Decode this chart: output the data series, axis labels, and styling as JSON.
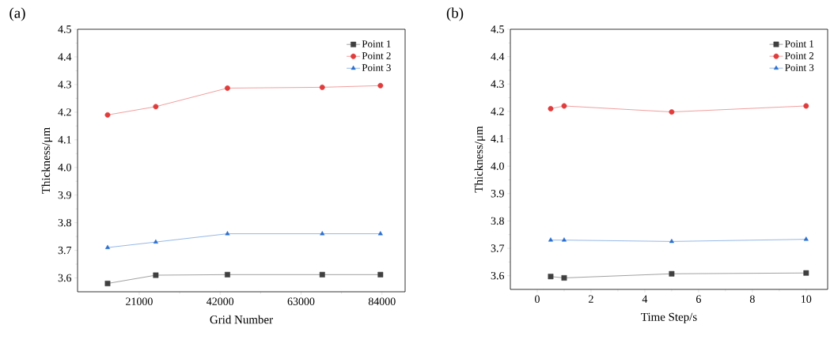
{
  "chart_data": [
    {
      "type": "line",
      "xlabel": "Grid Number",
      "ylabel": "Thickness/μm",
      "annotations": [
        "(a)"
      ],
      "legend": "top right",
      "line_style": "solid",
      "xlim": [
        5000,
        90000
      ],
      "xticks": [
        21000,
        42000,
        63000,
        84000
      ],
      "ylim": [
        3.55,
        4.5
      ],
      "yticks": [
        3.6,
        3.7,
        3.8,
        3.9,
        {
          "value": 4,
          "label": "4.0"
        },
        4.1,
        4.2,
        4.3,
        4.4,
        4.5
      ],
      "x": [
        12800,
        25300,
        43900,
        68500,
        83600
      ],
      "series": [
        {
          "name": "Point 1",
          "color": "#404040",
          "marker": "square",
          "values": [
            3.58,
            3.61,
            3.612,
            3.612,
            3.612
          ]
        },
        {
          "name": "Point 2",
          "color": "#e03c3c",
          "marker": "circle",
          "values": [
            4.19,
            4.22,
            4.287,
            4.29,
            4.296
          ]
        },
        {
          "name": "Point 3",
          "color": "#2a6fcf",
          "marker": "triangle",
          "values": [
            3.71,
            3.73,
            3.76,
            3.76,
            3.76
          ]
        }
      ]
    },
    {
      "type": "line",
      "xlabel": "Time Step/s",
      "ylabel": "Thickness/μm",
      "annotations": [
        "(b)"
      ],
      "legend": "top right",
      "line_style": "solid",
      "xlim": [
        -1,
        10.8
      ],
      "xticks": [
        0,
        2,
        4,
        6,
        8,
        10
      ],
      "ylim": [
        3.55,
        4.5
      ],
      "yticks": [
        3.6,
        3.7,
        3.8,
        3.9,
        {
          "value": 4,
          "label": "4.0"
        },
        4.1,
        4.2,
        4.3,
        4.4,
        4.5
      ],
      "x": [
        0.5,
        1,
        5,
        10
      ],
      "series": [
        {
          "name": "Point 1",
          "color": "#404040",
          "marker": "square",
          "values": [
            3.597,
            3.592,
            3.607,
            3.61
          ]
        },
        {
          "name": "Point 2",
          "color": "#e03c3c",
          "marker": "circle",
          "values": [
            4.21,
            4.22,
            4.198,
            4.22
          ]
        },
        {
          "name": "Point 3",
          "color": "#2a6fcf",
          "marker": "triangle",
          "values": [
            3.73,
            3.73,
            3.725,
            3.733
          ]
        }
      ]
    }
  ]
}
